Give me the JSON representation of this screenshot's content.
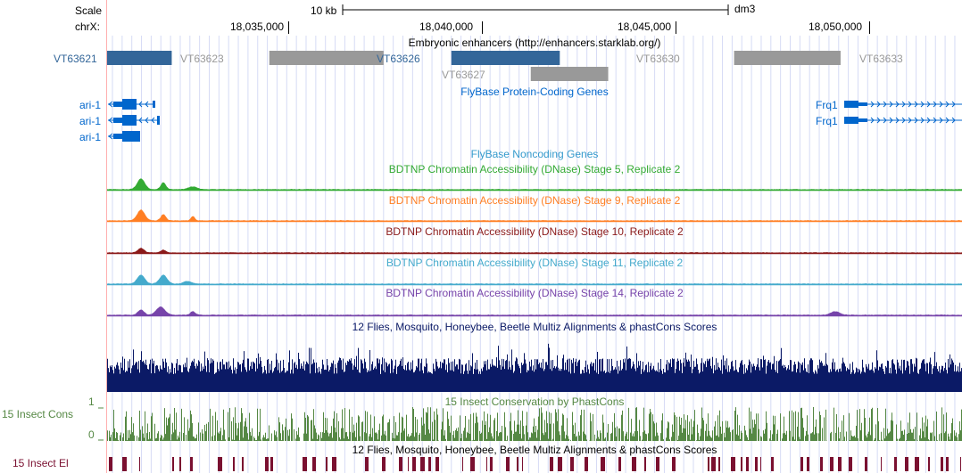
{
  "browser": {
    "scale_label": "Scale",
    "chrom_label": "chrX:",
    "scale_bar_label": "10 kb",
    "assembly": "dm3",
    "coordinates": [
      {
        "label": "18,035,000",
        "pos": 18035000
      },
      {
        "label": "18,040,000",
        "pos": 18040000
      },
      {
        "label": "18,045,000",
        "pos": 18045000
      },
      {
        "label": "18,050,000",
        "pos": 18050000
      }
    ]
  },
  "tracks": {
    "enhancers": {
      "title": "Embryonic enhancers (http://enhancers.starklab.org/)",
      "items": [
        {
          "name": "VT63621",
          "start": 18030000,
          "end": 18031980,
          "color": "#336699",
          "label_color": "#336699"
        },
        {
          "name": "VT63623",
          "start": 18034500,
          "end": 18037450,
          "color": "#999999",
          "label_color": "#999999"
        },
        {
          "name": "VT63626",
          "start": 18039200,
          "end": 18042000,
          "color": "#336699",
          "label_color": "#336699"
        },
        {
          "name": "VT63627",
          "start": 18041250,
          "end": 18043250,
          "color": "#999999",
          "label_color": "#999999"
        },
        {
          "name": "VT63630",
          "start": 18046500,
          "end": 18049250,
          "color": "#999999",
          "label_color": "#999999"
        },
        {
          "name": "VT63633",
          "start": 18052500,
          "end": 18054200,
          "color": "#999999",
          "label_color": "#999999"
        }
      ]
    },
    "protein_coding": {
      "title": "FlyBase Protein-Coding Genes",
      "color": "#0066cc",
      "genes": [
        {
          "name": "ari-1",
          "row": 0
        },
        {
          "name": "ari-1",
          "row": 1
        },
        {
          "name": "ari-1",
          "row": 2
        },
        {
          "name": "Frq1",
          "row": 0
        },
        {
          "name": "Frq1",
          "row": 1
        }
      ]
    },
    "noncoding": {
      "title": "FlyBase Noncoding Genes",
      "color": "#3399cc"
    },
    "dnase": [
      {
        "title": "BDTNP Chromatin Accessibility (DNase) Stage 5, Replicate 2",
        "color": "#33aa33"
      },
      {
        "title": "BDTNP Chromatin Accessibility (DNase) Stage 9, Replicate 2",
        "color": "#ff7f24"
      },
      {
        "title": "BDTNP Chromatin Accessibility (DNase) Stage 10, Replicate 2",
        "color": "#8b1a1a"
      },
      {
        "title": "BDTNP Chromatin Accessibility (DNase) Stage 11, Replicate 2",
        "color": "#44aacc"
      },
      {
        "title": "BDTNP Chromatin Accessibility (DNase) Stage 14, Replicate 2",
        "color": "#7744aa"
      }
    ],
    "multiz": {
      "title": "12 Flies, Mosquito, Honeybee, Beetle Multiz Alignments & phastCons Scores",
      "color": "#0b1a66"
    },
    "phastcons": {
      "title": "15 Insect Conservation by PhastCons",
      "side_label": "15 Insect Cons",
      "y_max": "1",
      "y_min": "0",
      "color": "#558844"
    },
    "elements": {
      "title": "12 Flies, Mosquito, Honeybee, Beetle Multiz Alignments & phastCons Scores",
      "side_label": "15 Insect El",
      "color": "#7a1030"
    }
  }
}
